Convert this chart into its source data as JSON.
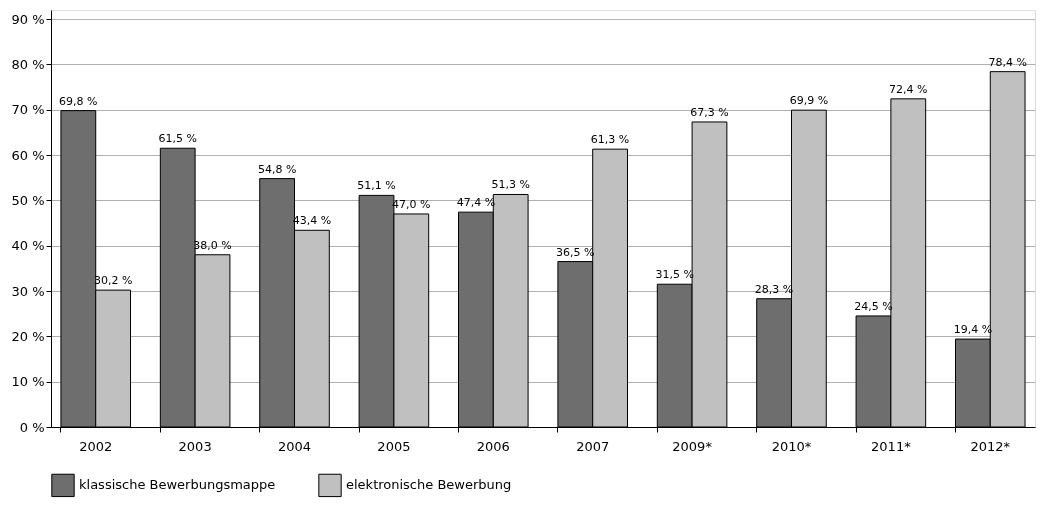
{
  "chart_data": {
    "type": "bar",
    "categories": [
      "2002",
      "2003",
      "2004",
      "2005",
      "2006",
      "2007",
      "2009*",
      "2010*",
      "2011*",
      "2012*"
    ],
    "series": [
      {
        "name": "klassische Bewerbungsmappe",
        "color": "#6e6e6e",
        "values": [
          69.8,
          61.5,
          54.8,
          51.1,
          47.4,
          36.5,
          31.5,
          28.3,
          24.5,
          19.4
        ],
        "value_labels": [
          "69,8 %",
          "61,5 %",
          "54,8 %",
          "51,1 %",
          "47,4 %",
          "36,5 %",
          "31,5 %",
          "28,3 %",
          "24,5 %",
          "19,4 %"
        ]
      },
      {
        "name": "elektronische Bewerbung",
        "color": "#c0c0c0",
        "values": [
          30.2,
          38.0,
          43.4,
          47.0,
          51.3,
          61.3,
          67.3,
          69.9,
          72.4,
          78.4
        ],
        "value_labels": [
          "30,2 %",
          "38,0 %",
          "43,4 %",
          "47,0 %",
          "51,3 %",
          "61,3 %",
          "67,3 %",
          "69,9 %",
          "72,4 %",
          "78,4 %"
        ]
      }
    ],
    "ylim": [
      0,
      92
    ],
    "yticks": [
      {
        "value": 0,
        "label": "0 %"
      },
      {
        "value": 10,
        "label": "10 %"
      },
      {
        "value": 20,
        "label": "20 %"
      },
      {
        "value": 30,
        "label": "30 %"
      },
      {
        "value": 40,
        "label": "40 %"
      },
      {
        "value": 50,
        "label": "50 %"
      },
      {
        "value": 60,
        "label": "60 %"
      },
      {
        "value": 70,
        "label": "70 %"
      },
      {
        "value": 80,
        "label": "80 %"
      },
      {
        "value": 90,
        "label": "90 %"
      }
    ],
    "grid": "y",
    "legend": "bottom left"
  }
}
